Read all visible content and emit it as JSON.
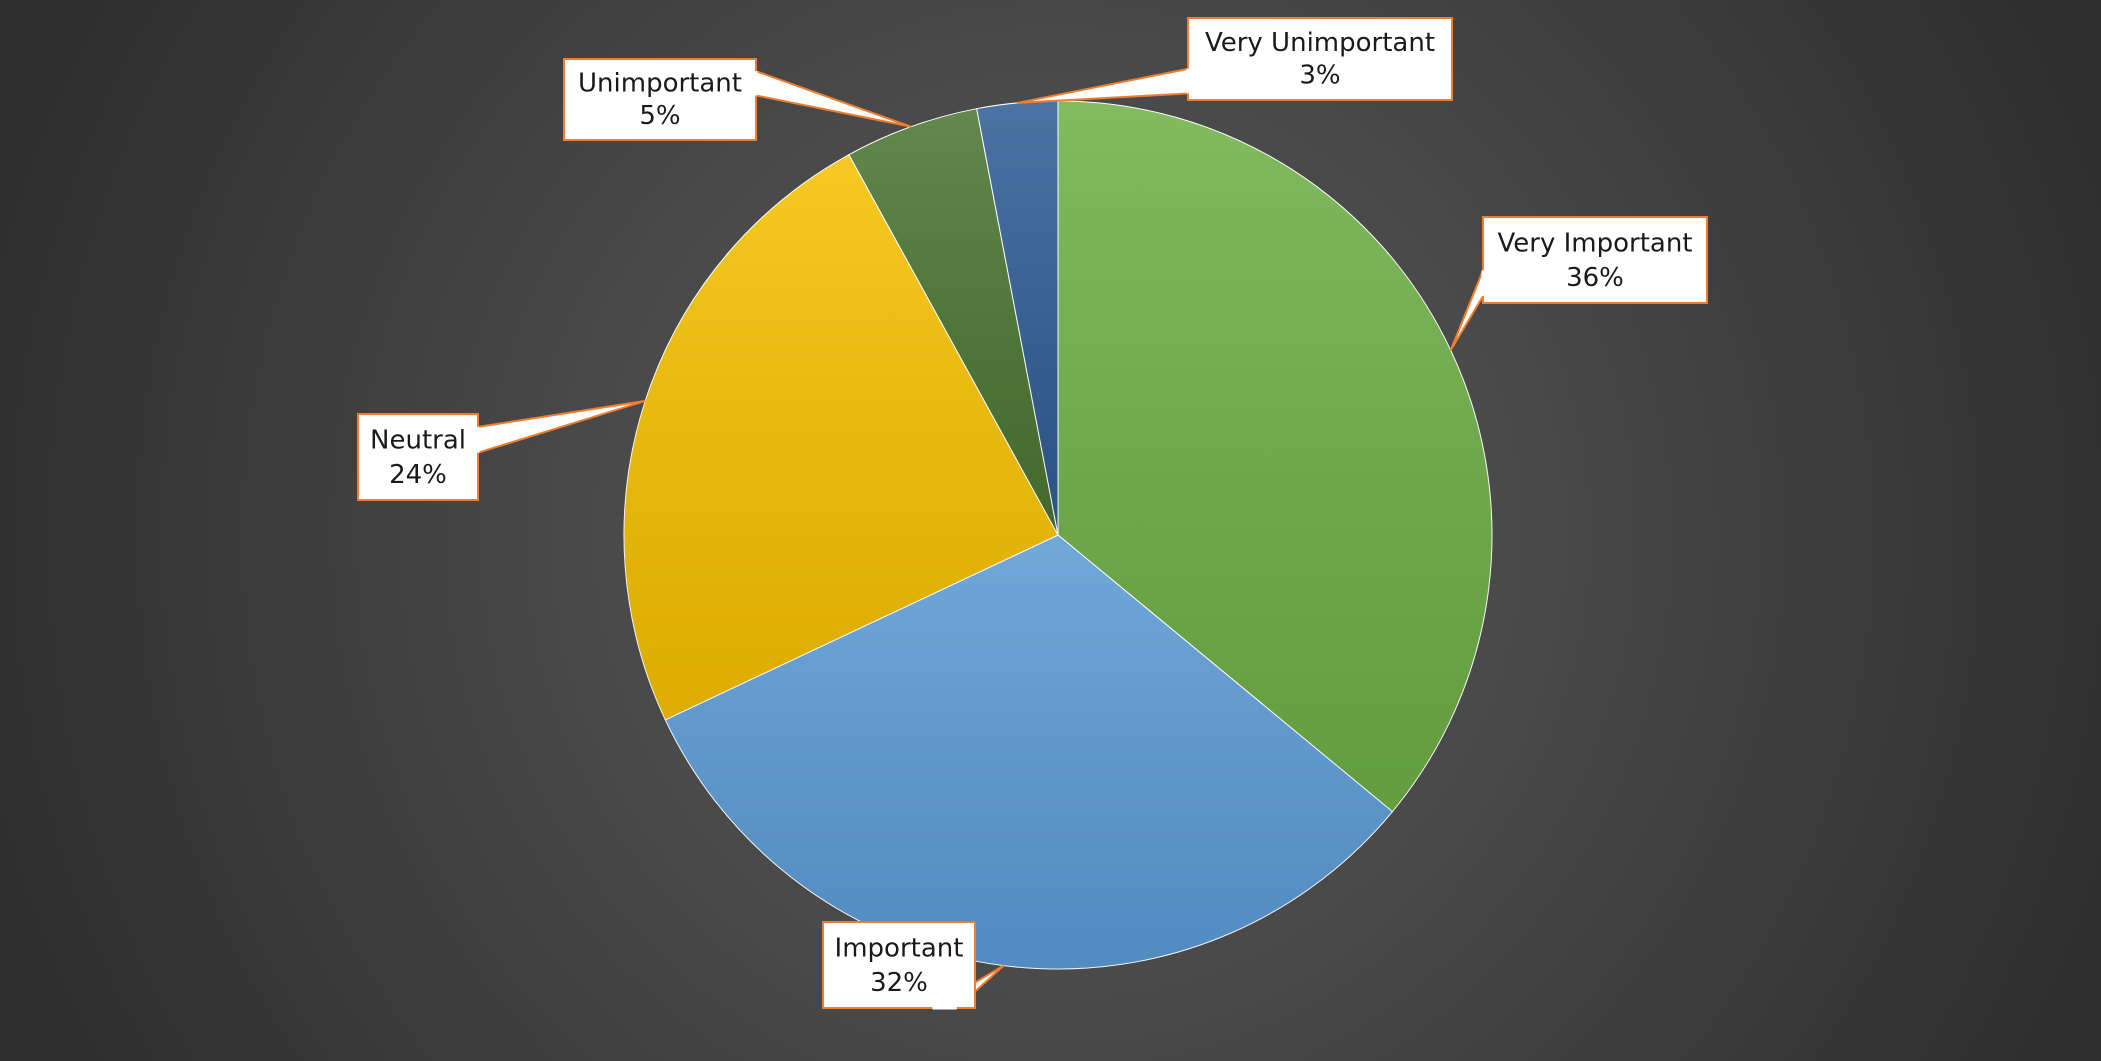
{
  "chart_data": {
    "type": "pie",
    "start_angle_deg": 0,
    "direction": "clockwise",
    "slices": [
      {
        "label": "Very Important",
        "value": 36,
        "value_text": "36%",
        "color": "#6eaf46"
      },
      {
        "label": "Important",
        "value": 32,
        "value_text": "32%",
        "color": "#5b9bd5"
      },
      {
        "label": "Neutral",
        "value": 24,
        "value_text": "24%",
        "color": "#f5c000"
      },
      {
        "label": "Unimportant",
        "value": 5,
        "value_text": "5%",
        "color": "#4a7532"
      },
      {
        "label": "Very Unimportant",
        "value": 3,
        "value_text": "3%",
        "color": "#2f5d94"
      }
    ],
    "data_label_style": "callout with leader, category name and percentage",
    "legend": "none",
    "background": "dark radial gradient"
  }
}
